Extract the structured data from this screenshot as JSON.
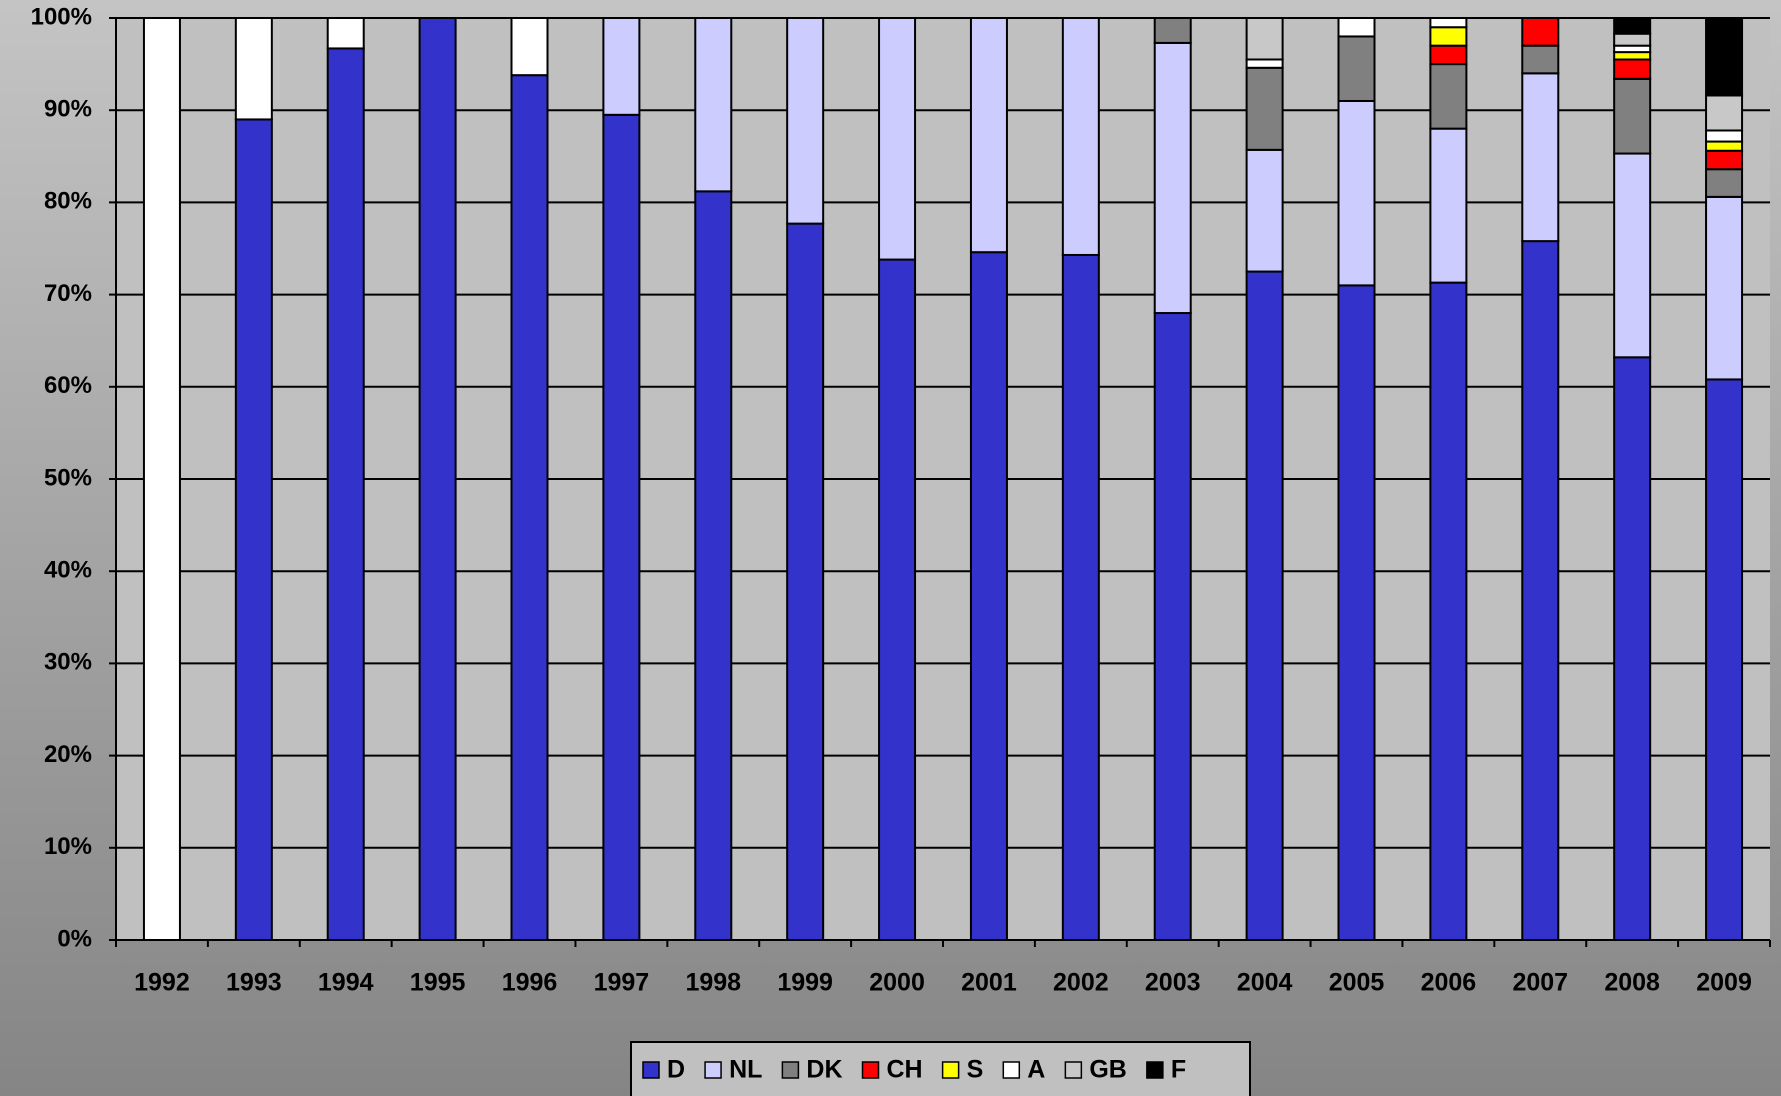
{
  "chart_data": {
    "type": "stacked_bar",
    "categories": [
      "1992",
      "1993",
      "1994",
      "1995",
      "1996",
      "1997",
      "1998",
      "1999",
      "2000",
      "2001",
      "2002",
      "2003",
      "2004",
      "2005",
      "2006",
      "2007",
      "2008",
      "2009"
    ],
    "series": [
      {
        "name": "D",
        "color": "#3333cc",
        "values": [
          0,
          89,
          96.7,
          100,
          93.8,
          89.5,
          81.2,
          77.7,
          73.8,
          74.6,
          74.3,
          68,
          72.5,
          71,
          71.3,
          75.8,
          63.2,
          60.8
        ]
      },
      {
        "name": "NL",
        "color": "#ccccff",
        "values": [
          0,
          0,
          0,
          0,
          0,
          10.5,
          18.8,
          22.3,
          26.2,
          25.4,
          25.7,
          29.3,
          13.2,
          20,
          16.7,
          18.2,
          22.1,
          19.8
        ]
      },
      {
        "name": "DK",
        "color": "#808080",
        "values": [
          0,
          0,
          0,
          0,
          0,
          0,
          0,
          0,
          0,
          0,
          0,
          2.7,
          8.9,
          7,
          7,
          3,
          8.1,
          3
        ]
      },
      {
        "name": "CH",
        "color": "#ff0000",
        "values": [
          0,
          0,
          0,
          0,
          0,
          0,
          0,
          0,
          0,
          0,
          0,
          0,
          0,
          0,
          2,
          3,
          2.1,
          2
        ]
      },
      {
        "name": "S",
        "color": "#ffff00",
        "values": [
          0,
          0,
          0,
          0,
          0,
          0,
          0,
          0,
          0,
          0,
          0,
          0,
          0,
          0,
          2,
          0,
          0.8,
          1
        ]
      },
      {
        "name": "A",
        "color": "#ffffff",
        "values": [
          100,
          11,
          3.3,
          0,
          6.2,
          0,
          0,
          0,
          0,
          0,
          0,
          0,
          0.9,
          2,
          1,
          0,
          0.7,
          1.2
        ]
      },
      {
        "name": "GB",
        "color": "#c8c8c8",
        "values": [
          0,
          0,
          0,
          0,
          0,
          0,
          0,
          0,
          0,
          0,
          0,
          0,
          4.5,
          0,
          0,
          0,
          1.3,
          3.8
        ]
      },
      {
        "name": "F",
        "color": "#000000",
        "values": [
          0,
          0,
          0,
          0,
          0,
          0,
          0,
          0,
          0,
          0,
          0,
          0,
          0,
          0,
          0,
          0,
          1.7,
          8.4
        ]
      }
    ],
    "ylim": [
      0,
      100
    ],
    "yticks": [
      {
        "value": 0,
        "label": "0%"
      },
      {
        "value": 10,
        "label": "10%"
      },
      {
        "value": 20,
        "label": "20%"
      },
      {
        "value": 30,
        "label": "30%"
      },
      {
        "value": 40,
        "label": "40%"
      },
      {
        "value": 50,
        "label": "50%"
      },
      {
        "value": 60,
        "label": "60%"
      },
      {
        "value": 70,
        "label": "70%"
      },
      {
        "value": 80,
        "label": "80%"
      },
      {
        "value": 90,
        "label": "90%"
      },
      {
        "value": 100,
        "label": "100%"
      }
    ],
    "grid": true,
    "legend": "bottom"
  }
}
